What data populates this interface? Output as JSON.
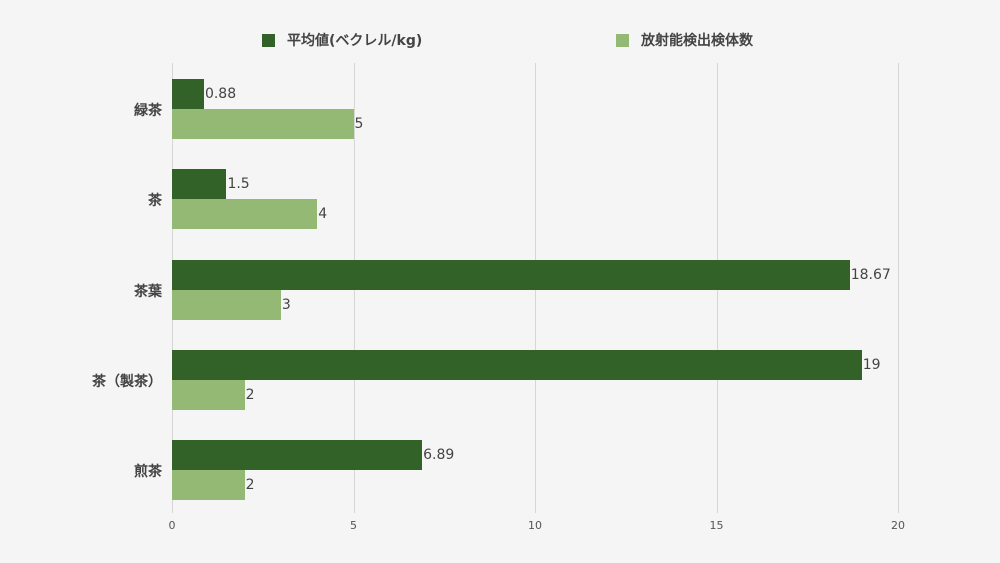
{
  "chart_data": {
    "type": "bar",
    "orientation": "horizontal",
    "title": "",
    "xlabel": "",
    "ylabel": "",
    "categories": [
      "緑茶",
      "茶",
      "茶葉",
      "茶（製茶）",
      "煎茶"
    ],
    "series": [
      {
        "name": "平均値(ベクレル/kg)",
        "color": "#336229",
        "values": [
          0.88,
          1.5,
          18.67,
          19,
          6.89
        ],
        "labels": [
          "0.88",
          "1.5",
          "18.67",
          "19",
          "6.89"
        ]
      },
      {
        "name": "放射能検出検体数",
        "color": "#93b975",
        "values": [
          5,
          4,
          3,
          2,
          2
        ],
        "labels": [
          "5",
          "4",
          "3",
          "2",
          "2"
        ]
      }
    ],
    "xlim": [
      0,
      20
    ],
    "xticks": [
      "0",
      "5",
      "10",
      "15",
      "20"
    ],
    "grid": true,
    "legend_position": "top"
  },
  "legend": {
    "items": [
      {
        "label": "平均値(ベクレル/kg)",
        "color": "#336229"
      },
      {
        "label": "放射能検出検体数",
        "color": "#93b975"
      }
    ]
  }
}
